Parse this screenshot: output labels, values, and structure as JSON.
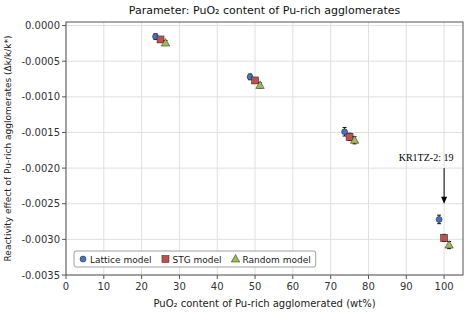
{
  "chart_data": {
    "type": "scatter",
    "title": "Parameter: PuO₂ content of Pu-rich agglomerates",
    "x_label": "PuO₂ content of Pu-rich agglomerated (wt%)",
    "y_label": "Reactivity effect of Pu-rich agglomerates (Δk/k/k*)",
    "xlim": [
      0,
      105
    ],
    "ylim": [
      -0.0035,
      5e-05
    ],
    "xticks": [
      0,
      10,
      20,
      30,
      40,
      50,
      60,
      70,
      80,
      90,
      100
    ],
    "yticks": [
      {
        "value": 0.0,
        "label": "0.0000"
      },
      {
        "value": -0.0005,
        "label": "-0.0005"
      },
      {
        "value": -0.001,
        "label": "-0.0010"
      },
      {
        "value": -0.0015,
        "label": "-0.0015"
      },
      {
        "value": -0.002,
        "label": "-0.0020"
      },
      {
        "value": -0.0025,
        "label": "-0.0025"
      },
      {
        "value": -0.003,
        "label": "-0.0030"
      },
      {
        "value": -0.0035,
        "label": "-0.0035"
      }
    ],
    "grid": true,
    "legend": "lower left",
    "x": [
      25,
      50,
      75,
      100
    ],
    "series": [
      {
        "name": "Lattice model",
        "color": "#4472c4",
        "marker": "point",
        "values": [
          -0.000155,
          -0.00072,
          -0.00149,
          -0.00272
        ],
        "errors": [
          4e-05,
          4e-05,
          6e-05,
          6e-05
        ]
      },
      {
        "name": "STG model",
        "color": "#c0504d",
        "marker": "square",
        "values": [
          -0.000195,
          -0.00077,
          -0.00156,
          -0.00298
        ],
        "errors": [
          3.5e-05,
          3.5e-05,
          5e-05,
          5e-05
        ]
      },
      {
        "name": "Random model",
        "color": "#9bbb59",
        "marker": "triangle",
        "values": [
          -0.000245,
          -0.00084,
          -0.00161,
          -0.00308
        ],
        "errors": [
          3.5e-05,
          3.5e-05,
          5e-05,
          5e-05
        ]
      }
    ],
    "annotations": [
      {
        "text": "KR1TZ-2: 19",
        "x": 88,
        "y": -0.00185
      }
    ],
    "arrow": {
      "x": 100,
      "y_from": -0.002,
      "y_to": -0.0025
    }
  }
}
